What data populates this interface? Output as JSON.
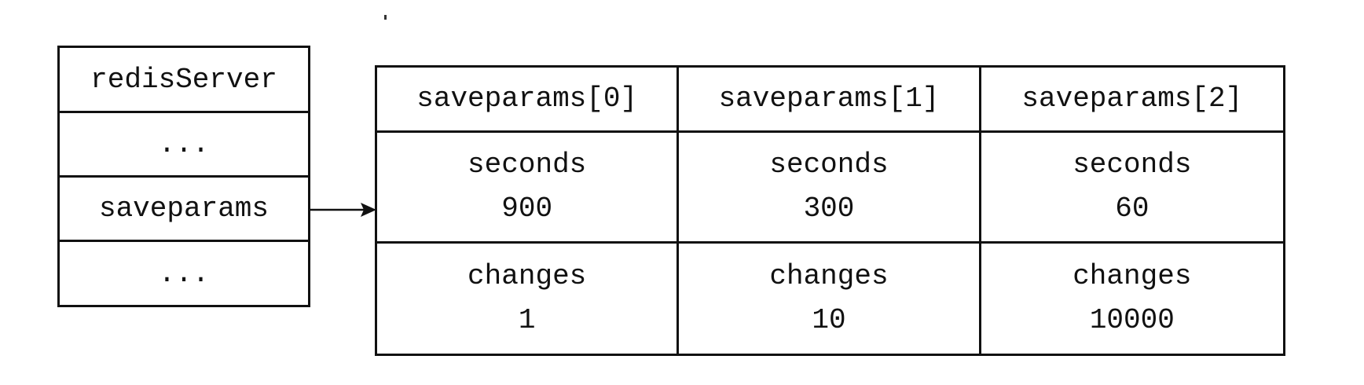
{
  "struct": {
    "name": "redisServer",
    "fields": [
      "...",
      "saveparams",
      "..."
    ]
  },
  "array": {
    "headers": [
      "saveparams[0]",
      "saveparams[1]",
      "saveparams[2]"
    ],
    "entries": [
      {
        "seconds_label": "seconds",
        "seconds": "900",
        "changes_label": "changes",
        "changes": "1"
      },
      {
        "seconds_label": "seconds",
        "seconds": "300",
        "changes_label": "changes",
        "changes": "10"
      },
      {
        "seconds_label": "seconds",
        "seconds": "60",
        "changes_label": "changes",
        "changes": "10000"
      }
    ]
  }
}
